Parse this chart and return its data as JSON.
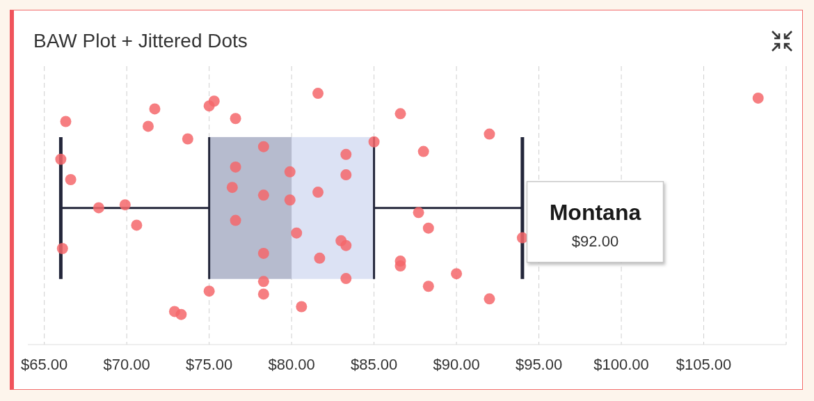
{
  "chart_data": {
    "type": "box",
    "title": "BAW Plot + Jittered Dots",
    "orientation": "horizontal",
    "categories": [
      null
    ],
    "grid": "x",
    "xlim": [
      64,
      110
    ],
    "xticks": [
      {
        "value": 65,
        "label": "$65.00"
      },
      {
        "value": 70,
        "label": "$70.00"
      },
      {
        "value": 75,
        "label": "$75.00"
      },
      {
        "value": 80,
        "label": "$80.00"
      },
      {
        "value": 85,
        "label": "$85.00"
      },
      {
        "value": 90,
        "label": "$90.00"
      },
      {
        "value": 95,
        "label": "$95.00"
      },
      {
        "value": 100,
        "label": "$100.00"
      },
      {
        "value": 105,
        "label": "$105.00"
      },
      {
        "value": 110,
        "label": null
      }
    ],
    "tick_labels": "x",
    "series": [
      {
        "type": "box",
        "color": "#dce2f4",
        "boxes": [
          {
            "low": 66,
            "q1": 75,
            "median": 80,
            "q3": 85,
            "high": 94
          }
        ]
      },
      {
        "type": "scatter",
        "color": "#f4676b",
        "x": [
          null,
          null,
          null,
          null,
          null,
          null,
          null,
          null,
          null,
          null,
          null,
          null,
          null,
          null,
          null,
          null,
          null,
          null,
          null,
          null,
          null,
          null,
          null,
          null,
          null,
          null,
          null,
          null,
          null,
          null,
          null,
          null,
          null,
          null,
          null,
          null,
          null,
          null,
          null,
          null,
          null,
          null,
          null,
          null,
          null,
          null,
          null,
          null,
          null
        ],
        "values": [
          66.1,
          71.7,
          78.3,
          78.3,
          85.0,
          88.3,
          73.3,
          83.3,
          86.6,
          66.3,
          68.3,
          78.3,
          83.3,
          83.0,
          75.3,
          76.4,
          90.0,
          92.0,
          76.6,
          80.6,
          76.6,
          78.3,
          86.6,
          79.9,
          88.3,
          78.3,
          80.3,
          81.6,
          66.6,
          86.6,
          71.3,
          87.7,
          92.0,
          66.0,
          83.3,
          75.0,
          81.6,
          83.3,
          73.7,
          70.6,
          72.9,
          79.9,
          81.7,
          76.6,
          69.9,
          75.0,
          88.0,
          94.0,
          108.3
        ]
      }
    ],
    "annotations": [
      {
        "text": "Montana",
        "x": 92
      },
      "$92.00"
    ]
  }
}
